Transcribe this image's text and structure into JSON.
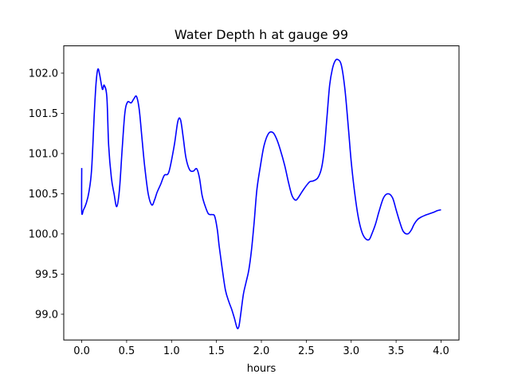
{
  "chart_data": {
    "type": "line",
    "title": "Water Depth h at gauge 99",
    "xlabel": "hours",
    "ylabel": "",
    "xlim": [
      -0.2,
      4.2
    ],
    "ylim": [
      98.68,
      102.34
    ],
    "xticks": [
      0.0,
      0.5,
      1.0,
      1.5,
      2.0,
      2.5,
      3.0,
      3.5,
      4.0
    ],
    "xtick_labels": [
      "0.0",
      "0.5",
      "1.0",
      "1.5",
      "2.0",
      "2.5",
      "3.0",
      "3.5",
      "4.0"
    ],
    "yticks": [
      99.0,
      99.5,
      100.0,
      100.5,
      101.0,
      101.5,
      102.0
    ],
    "ytick_labels": [
      "99.0",
      "99.5",
      "100.0",
      "100.5",
      "101.0",
      "101.5",
      "102.0"
    ],
    "grid": false,
    "legend": "none",
    "series": [
      {
        "color": "#0000ff",
        "x": [
          0.0,
          0.0,
          0.02,
          0.05,
          0.08,
          0.11,
          0.14,
          0.16,
          0.18,
          0.2,
          0.23,
          0.25,
          0.28,
          0.3,
          0.33,
          0.36,
          0.39,
          0.42,
          0.45,
          0.48,
          0.51,
          0.55,
          0.58,
          0.61,
          0.64,
          0.67,
          0.7,
          0.74,
          0.78,
          0.81,
          0.84,
          0.88,
          0.92,
          0.97,
          1.03,
          1.07,
          1.1,
          1.13,
          1.16,
          1.2,
          1.24,
          1.28,
          1.31,
          1.34,
          1.37,
          1.41,
          1.45,
          1.48,
          1.51,
          1.53,
          1.56,
          1.6,
          1.64,
          1.67,
          1.7,
          1.73,
          1.75,
          1.77,
          1.8,
          1.83,
          1.86,
          1.89,
          1.92,
          1.95,
          1.99,
          2.03,
          2.08,
          2.13,
          2.17,
          2.21,
          2.26,
          2.3,
          2.34,
          2.38,
          2.41,
          2.45,
          2.5,
          2.54,
          2.58,
          2.63,
          2.67,
          2.7,
          2.73,
          2.76,
          2.79,
          2.82,
          2.85,
          2.89,
          2.93,
          2.97,
          3.0,
          3.04,
          3.08,
          3.12,
          3.16,
          3.2,
          3.23,
          3.27,
          3.31,
          3.36,
          3.41,
          3.46,
          3.5,
          3.54,
          3.58,
          3.63,
          3.67,
          3.7,
          3.74,
          3.78,
          3.82,
          3.87,
          3.92,
          3.96,
          4.0
        ],
        "y": [
          100.82,
          100.28,
          100.3,
          100.38,
          100.52,
          100.8,
          101.5,
          101.88,
          102.05,
          101.98,
          101.8,
          101.85,
          101.7,
          101.1,
          100.7,
          100.5,
          100.34,
          100.55,
          101.05,
          101.5,
          101.64,
          101.63,
          101.68,
          101.71,
          101.55,
          101.2,
          100.85,
          100.5,
          100.36,
          100.42,
          100.52,
          100.62,
          100.73,
          100.77,
          101.1,
          101.4,
          101.42,
          101.2,
          100.95,
          100.8,
          100.78,
          100.81,
          100.7,
          100.48,
          100.36,
          100.25,
          100.24,
          100.22,
          100.05,
          99.85,
          99.6,
          99.3,
          99.15,
          99.06,
          98.95,
          98.83,
          98.85,
          99.0,
          99.25,
          99.4,
          99.55,
          99.8,
          100.15,
          100.55,
          100.85,
          101.1,
          101.25,
          101.26,
          101.18,
          101.05,
          100.85,
          100.65,
          100.48,
          100.42,
          100.45,
          100.52,
          100.6,
          100.65,
          100.66,
          100.7,
          100.82,
          101.05,
          101.45,
          101.85,
          102.05,
          102.15,
          102.17,
          102.1,
          101.8,
          101.3,
          100.9,
          100.5,
          100.2,
          100.02,
          99.94,
          99.93,
          100.0,
          100.12,
          100.28,
          100.45,
          100.5,
          100.45,
          100.3,
          100.15,
          100.03,
          100.0,
          100.05,
          100.12,
          100.18,
          100.21,
          100.23,
          100.25,
          100.27,
          100.29,
          100.3
        ]
      }
    ]
  }
}
